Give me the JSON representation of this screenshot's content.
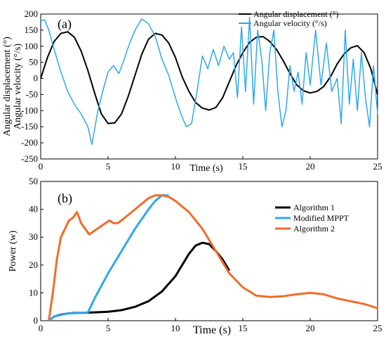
{
  "chart_data": [
    {
      "type": "line",
      "panel_label": "(a)",
      "ylabel_lines": [
        "Angular displacement (°)",
        "Angular velocity (°/s)"
      ],
      "xlabel": "Time (s)",
      "xlim": [
        0,
        25
      ],
      "ylim": [
        -250,
        200
      ],
      "xticks": [
        0,
        5,
        10,
        15,
        20,
        25
      ],
      "yticks": [
        -250,
        -200,
        -150,
        -100,
        -50,
        0,
        50,
        100,
        150,
        200
      ],
      "grid": false,
      "legend_position": "top-right",
      "series": [
        {
          "name": "Angular displacement (°)",
          "color": "#000000",
          "x": [
            0,
            0.5,
            1,
            1.5,
            2,
            2.5,
            3,
            3.5,
            4,
            4.5,
            5,
            5.5,
            6,
            6.5,
            7,
            7.5,
            8,
            8.5,
            9,
            9.5,
            10,
            10.5,
            11,
            11.5,
            12,
            12.5,
            13,
            13.5,
            14,
            14.5,
            15,
            15.5,
            16,
            16.5,
            17,
            17.5,
            18,
            18.5,
            19,
            19.5,
            20,
            20.5,
            21,
            21.5,
            22,
            22.5,
            23,
            23.5,
            24,
            24.5,
            25
          ],
          "y": [
            0,
            65,
            115,
            140,
            145,
            128,
            85,
            25,
            -45,
            -110,
            -140,
            -138,
            -110,
            -55,
            10,
            75,
            122,
            140,
            135,
            110,
            65,
            5,
            -40,
            -75,
            -92,
            -98,
            -90,
            -60,
            -10,
            40,
            80,
            112,
            128,
            130,
            115,
            90,
            55,
            15,
            -20,
            -38,
            -45,
            -40,
            -25,
            5,
            45,
            75,
            95,
            102,
            80,
            30,
            -50
          ]
        },
        {
          "name": "Angular velocity (°/s)",
          "color": "#2ea8ec",
          "x": [
            0,
            0.3,
            0.6,
            1,
            1.5,
            2,
            2.5,
            3,
            3.5,
            3.8,
            4.2,
            4.6,
            5,
            5.4,
            5.8,
            6.2,
            6.6,
            7,
            7.5,
            8,
            8.5,
            9,
            9.5,
            10,
            10.4,
            10.8,
            11.2,
            11.6,
            12,
            12.4,
            12.8,
            13.2,
            13.6,
            14,
            14.3,
            14.6,
            14.9,
            15.2,
            15.5,
            15.8,
            16.1,
            16.4,
            16.7,
            17,
            17.3,
            17.6,
            17.9,
            18.2,
            18.5,
            18.8,
            19.1,
            19.4,
            19.7,
            20,
            20.4,
            20.8,
            21.2,
            21.6,
            22,
            22.3,
            22.6,
            22.9,
            23.2,
            23.5,
            23.8,
            24.1,
            24.4,
            24.7,
            25
          ],
          "y": [
            180,
            182,
            150,
            90,
            20,
            -40,
            -80,
            -110,
            -150,
            -205,
            -110,
            -40,
            20,
            40,
            15,
            60,
            110,
            150,
            185,
            170,
            130,
            60,
            10,
            -60,
            -110,
            -150,
            -140,
            -40,
            70,
            30,
            90,
            40,
            100,
            60,
            80,
            -60,
            160,
            -40,
            190,
            -80,
            150,
            60,
            -100,
            80,
            150,
            -40,
            -150,
            -100,
            40,
            -40,
            20,
            -80,
            80,
            -20,
            150,
            -20,
            110,
            -40,
            0,
            -140,
            150,
            -80,
            60,
            -100,
            80,
            -60,
            -150,
            40,
            -110
          ]
        }
      ]
    },
    {
      "type": "line",
      "panel_label": "(b)",
      "xlabel": "Time (s)",
      "ylabel": "Power (w)",
      "xlim": [
        0,
        25
      ],
      "ylim": [
        0,
        50
      ],
      "xticks": [
        0,
        5,
        10,
        15,
        20,
        25
      ],
      "yticks": [
        0,
        10,
        20,
        30,
        40,
        50
      ],
      "grid": false,
      "legend_position": "right",
      "series": [
        {
          "name": "Algorithm 1",
          "color": "#000000",
          "x": [
            0.6,
            1,
            1.5,
            2,
            2.5,
            3,
            4,
            5,
            6,
            7,
            8,
            9,
            10,
            10.5,
            11,
            11.5,
            12,
            12.5,
            13,
            13.5,
            14
          ],
          "y": [
            0,
            1.5,
            2.2,
            2.6,
            2.8,
            2.8,
            3,
            3.2,
            3.8,
            5,
            7,
            10.5,
            16,
            20,
            24,
            27,
            28,
            27.5,
            25,
            22,
            18
          ]
        },
        {
          "name": "Modified MPPT",
          "color": "#2ea8ec",
          "x": [
            0.6,
            1,
            2,
            3,
            3.5,
            4,
            5,
            6,
            7,
            8,
            8.5,
            9,
            9.5
          ],
          "y": [
            0,
            1.5,
            2.6,
            2.8,
            3,
            8,
            17,
            25,
            33,
            40,
            43,
            45,
            45
          ]
        },
        {
          "name": "Algorithm 2",
          "color": "#f26c2a",
          "x": [
            0.6,
            0.9,
            1.2,
            1.5,
            1.8,
            2.1,
            2.4,
            2.7,
            3,
            3.3,
            3.6,
            3.9,
            4.2,
            4.5,
            4.8,
            5.1,
            5.4,
            5.7,
            6,
            6.5,
            7,
            7.5,
            8,
            8.5,
            9,
            9.5,
            10,
            11,
            12,
            13,
            14,
            15,
            16,
            17,
            18,
            19,
            20,
            21,
            22,
            23,
            24,
            25
          ],
          "y": [
            0,
            10,
            22,
            30,
            33,
            36,
            37,
            39,
            35,
            33,
            31,
            32,
            33,
            34,
            35,
            36,
            35,
            35,
            36,
            38,
            40,
            42,
            44,
            45,
            45,
            44.5,
            43,
            39,
            33,
            25,
            17,
            12,
            9,
            8.5,
            8.8,
            9.5,
            10,
            9.5,
            8,
            7,
            6,
            4.5
          ]
        }
      ]
    }
  ]
}
